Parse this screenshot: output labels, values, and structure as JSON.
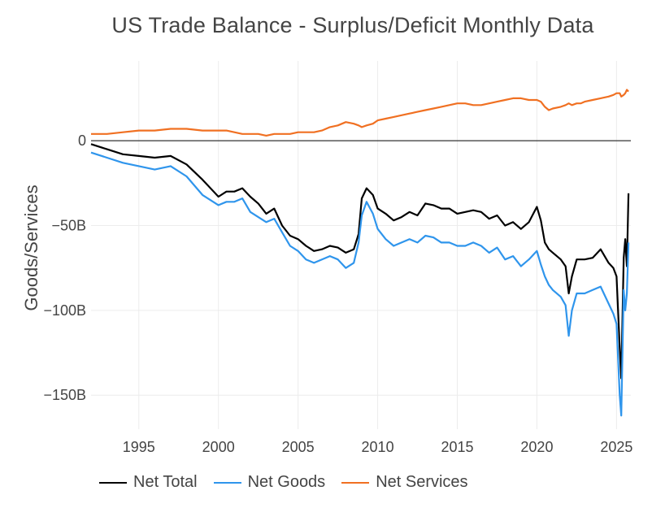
{
  "chart_data": {
    "type": "line",
    "title": "US Trade Balance - Surplus/Deficit Monthly Data",
    "xlabel": "",
    "ylabel": "Goods/Services",
    "xlim": [
      1992.0,
      2025.9
    ],
    "ylim": [
      -170,
      47
    ],
    "x_ticks": [
      1995,
      2000,
      2005,
      2010,
      2015,
      2020,
      2025
    ],
    "y_ticks": [
      {
        "value": 0,
        "label": "0"
      },
      {
        "value": -50,
        "label": "−50B"
      },
      {
        "value": -100,
        "label": "−100B"
      },
      {
        "value": -150,
        "label": "−150B"
      }
    ],
    "grid": true,
    "zero_line": true,
    "legend_position": "bottom-left",
    "series": [
      {
        "name": "Net Total",
        "color": "#000000",
        "x": [
          1992.0,
          1993.0,
          1994.0,
          1995.0,
          1996.0,
          1997.0,
          1998.0,
          1999.0,
          2000.0,
          2000.5,
          2001.0,
          2001.5,
          2002.0,
          2002.5,
          2003.0,
          2003.5,
          2004.0,
          2004.5,
          2005.0,
          2005.5,
          2006.0,
          2006.5,
          2007.0,
          2007.5,
          2008.0,
          2008.5,
          2008.8,
          2009.0,
          2009.3,
          2009.7,
          2010.0,
          2010.5,
          2011.0,
          2011.5,
          2012.0,
          2012.5,
          2013.0,
          2013.5,
          2014.0,
          2014.5,
          2015.0,
          2015.5,
          2016.0,
          2016.5,
          2017.0,
          2017.5,
          2018.0,
          2018.5,
          2019.0,
          2019.5,
          2020.0,
          2020.25,
          2020.5,
          2020.75,
          2021.0,
          2021.5,
          2021.8,
          2022.0,
          2022.2,
          2022.5,
          2022.75,
          2023.0,
          2023.5,
          2024.0,
          2024.5,
          2024.8,
          2025.0,
          2025.2,
          2025.3,
          2025.45,
          2025.55,
          2025.65,
          2025.75
        ],
        "values": [
          -2,
          -5,
          -8,
          -9,
          -10,
          -9,
          -14,
          -23,
          -33,
          -30,
          -30,
          -28,
          -33,
          -37,
          -43,
          -40,
          -50,
          -56,
          -58,
          -62,
          -65,
          -64,
          -62,
          -63,
          -66,
          -64,
          -55,
          -34,
          -28,
          -32,
          -40,
          -43,
          -47,
          -45,
          -42,
          -44,
          -37,
          -38,
          -40,
          -40,
          -43,
          -42,
          -41,
          -42,
          -46,
          -44,
          -50,
          -48,
          -52,
          -48,
          -39,
          -47,
          -60,
          -64,
          -66,
          -70,
          -74,
          -90,
          -80,
          -70,
          -70,
          -70,
          -69,
          -64,
          -72,
          -75,
          -80,
          -122,
          -140,
          -69,
          -58,
          -74,
          -31
        ]
      },
      {
        "name": "Net Goods",
        "color": "#2f95ec",
        "x": [
          1992.0,
          1993.0,
          1994.0,
          1995.0,
          1996.0,
          1997.0,
          1998.0,
          1999.0,
          2000.0,
          2000.5,
          2001.0,
          2001.5,
          2002.0,
          2002.5,
          2003.0,
          2003.5,
          2004.0,
          2004.5,
          2005.0,
          2005.5,
          2006.0,
          2006.5,
          2007.0,
          2007.5,
          2008.0,
          2008.5,
          2008.8,
          2009.0,
          2009.3,
          2009.7,
          2010.0,
          2010.5,
          2011.0,
          2011.5,
          2012.0,
          2012.5,
          2013.0,
          2013.5,
          2014.0,
          2014.5,
          2015.0,
          2015.5,
          2016.0,
          2016.5,
          2017.0,
          2017.5,
          2018.0,
          2018.5,
          2019.0,
          2019.5,
          2020.0,
          2020.25,
          2020.5,
          2020.75,
          2021.0,
          2021.5,
          2021.8,
          2022.0,
          2022.2,
          2022.5,
          2022.75,
          2023.0,
          2023.5,
          2024.0,
          2024.5,
          2024.8,
          2025.0,
          2025.2,
          2025.3,
          2025.45,
          2025.55,
          2025.65,
          2025.75
        ],
        "values": [
          -7,
          -10,
          -13,
          -15,
          -17,
          -15,
          -21,
          -32,
          -38,
          -36,
          -36,
          -34,
          -42,
          -45,
          -48,
          -46,
          -54,
          -62,
          -65,
          -70,
          -72,
          -70,
          -68,
          -70,
          -75,
          -72,
          -60,
          -44,
          -36,
          -43,
          -52,
          -58,
          -62,
          -60,
          -58,
          -60,
          -56,
          -57,
          -60,
          -60,
          -62,
          -62,
          -60,
          -62,
          -66,
          -63,
          -70,
          -68,
          -74,
          -70,
          -65,
          -73,
          -80,
          -85,
          -88,
          -92,
          -97,
          -115,
          -100,
          -90,
          -90,
          -90,
          -88,
          -86,
          -96,
          -102,
          -108,
          -150,
          -162,
          -88,
          -100,
          -90,
          -60
        ]
      },
      {
        "name": "Net Services",
        "color": "#f07022",
        "x": [
          1992.0,
          1993.0,
          1994.0,
          1995.0,
          1996.0,
          1997.0,
          1998.0,
          1999.0,
          2000.0,
          2000.5,
          2001.0,
          2001.5,
          2002.0,
          2002.5,
          2003.0,
          2003.5,
          2004.0,
          2004.5,
          2005.0,
          2005.5,
          2006.0,
          2006.5,
          2007.0,
          2007.5,
          2008.0,
          2008.5,
          2008.8,
          2009.0,
          2009.3,
          2009.7,
          2010.0,
          2010.5,
          2011.0,
          2011.5,
          2012.0,
          2012.5,
          2013.0,
          2013.5,
          2014.0,
          2014.5,
          2015.0,
          2015.5,
          2016.0,
          2016.5,
          2017.0,
          2017.5,
          2018.0,
          2018.5,
          2019.0,
          2019.5,
          2020.0,
          2020.25,
          2020.5,
          2020.75,
          2021.0,
          2021.5,
          2021.8,
          2022.0,
          2022.2,
          2022.5,
          2022.75,
          2023.0,
          2023.5,
          2024.0,
          2024.5,
          2024.8,
          2025.0,
          2025.2,
          2025.3,
          2025.45,
          2025.55,
          2025.65,
          2025.75
        ],
        "values": [
          4,
          4,
          5,
          6,
          6,
          7,
          7,
          6,
          6,
          6,
          5,
          4,
          4,
          4,
          3,
          4,
          4,
          4,
          5,
          5,
          5,
          6,
          8,
          9,
          11,
          10,
          9,
          8,
          9,
          10,
          12,
          13,
          14,
          15,
          16,
          17,
          18,
          19,
          20,
          21,
          22,
          22,
          21,
          21,
          22,
          23,
          24,
          25,
          25,
          24,
          24,
          23,
          20,
          18,
          19,
          20,
          21,
          22,
          21,
          22,
          22,
          23,
          24,
          25,
          26,
          27,
          28,
          28,
          26,
          27,
          28,
          30,
          29
        ]
      }
    ]
  }
}
